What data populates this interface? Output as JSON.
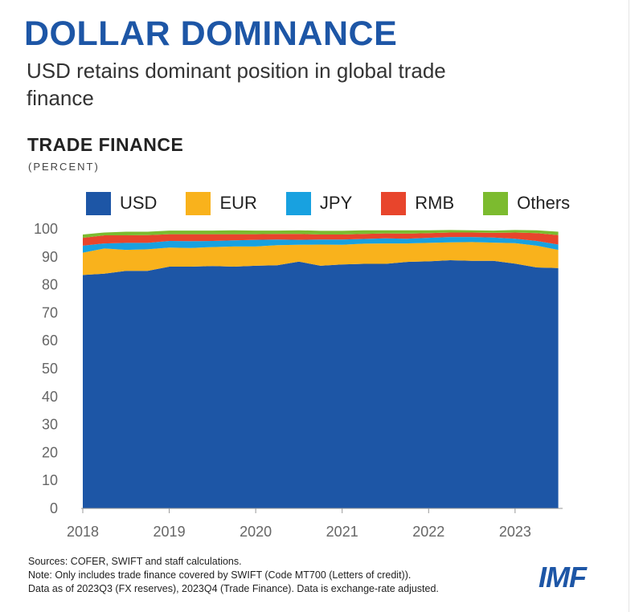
{
  "header": {
    "title": "DOLLAR DOMINANCE",
    "subtitle": "USD retains dominant position in global trade finance"
  },
  "chart_data": {
    "type": "area",
    "stacked": true,
    "title": "TRADE FINANCE",
    "unit": "(PERCENT)",
    "ylim": [
      0,
      100
    ],
    "yticks": [
      0,
      10,
      20,
      30,
      40,
      50,
      60,
      70,
      80,
      90,
      100
    ],
    "xticks": [
      "2018",
      "2019",
      "2020",
      "2021",
      "2022",
      "2023"
    ],
    "xlim": [
      2018,
      2023.55
    ],
    "grid": false,
    "legend_position": "top",
    "x": [
      2018.0,
      2018.25,
      2018.5,
      2018.75,
      2019.0,
      2019.25,
      2019.5,
      2019.75,
      2020.0,
      2020.25,
      2020.5,
      2020.75,
      2021.0,
      2021.25,
      2021.5,
      2021.75,
      2022.0,
      2022.25,
      2022.5,
      2022.75,
      2023.0,
      2023.25,
      2023.5
    ],
    "series": [
      {
        "name": "USD",
        "color": "#1d56a6",
        "values": [
          83.5,
          84.0,
          85.0,
          85.0,
          86.5,
          86.5,
          86.7,
          86.5,
          86.8,
          87.0,
          88.3,
          86.8,
          87.3,
          87.5,
          87.5,
          88.2,
          88.4,
          88.8,
          88.6,
          88.6,
          87.6,
          86.2,
          86.0
        ]
      },
      {
        "name": "EUR",
        "color": "#f9b21c",
        "values": [
          8.0,
          9.0,
          7.5,
          7.7,
          6.8,
          6.7,
          6.8,
          7.2,
          6.9,
          7.2,
          6.0,
          7.6,
          7.0,
          7.2,
          7.3,
          6.6,
          6.6,
          6.4,
          6.7,
          6.5,
          7.3,
          7.8,
          6.5
        ]
      },
      {
        "name": "JPY",
        "color": "#18a1e0",
        "values": [
          2.5,
          1.8,
          2.5,
          2.3,
          2.4,
          2.4,
          2.2,
          2.2,
          2.4,
          2.0,
          1.8,
          1.8,
          1.9,
          1.7,
          1.8,
          1.7,
          1.8,
          1.9,
          1.8,
          1.8,
          1.6,
          1.7,
          1.9
        ]
      },
      {
        "name": "RMB",
        "color": "#e8452c",
        "values": [
          2.8,
          2.9,
          2.7,
          2.8,
          2.4,
          2.5,
          2.4,
          2.2,
          2.0,
          2.0,
          2.1,
          1.8,
          1.8,
          1.8,
          1.8,
          1.8,
          1.7,
          1.6,
          1.6,
          1.7,
          2.2,
          2.8,
          3.4
        ]
      },
      {
        "name": "Others",
        "color": "#7cbb2f",
        "values": [
          1.2,
          1.0,
          1.3,
          1.2,
          1.3,
          1.3,
          1.3,
          1.4,
          1.3,
          1.2,
          1.3,
          1.3,
          1.3,
          1.3,
          1.1,
          1.2,
          1.0,
          0.9,
          0.8,
          0.8,
          0.9,
          1.0,
          1.2
        ]
      }
    ]
  },
  "notes": {
    "line1": "Sources: COFER, SWIFT and staff calculations.",
    "line2": "Note: Only includes trade finance covered by SWIFT (Code MT700 (Letters of credit)).",
    "line3": "Data as of 2023Q3 (FX reserves), 2023Q4 (Trade Finance). Data is exchange-rate adjusted."
  },
  "brand": {
    "logo_text": "IMF"
  }
}
